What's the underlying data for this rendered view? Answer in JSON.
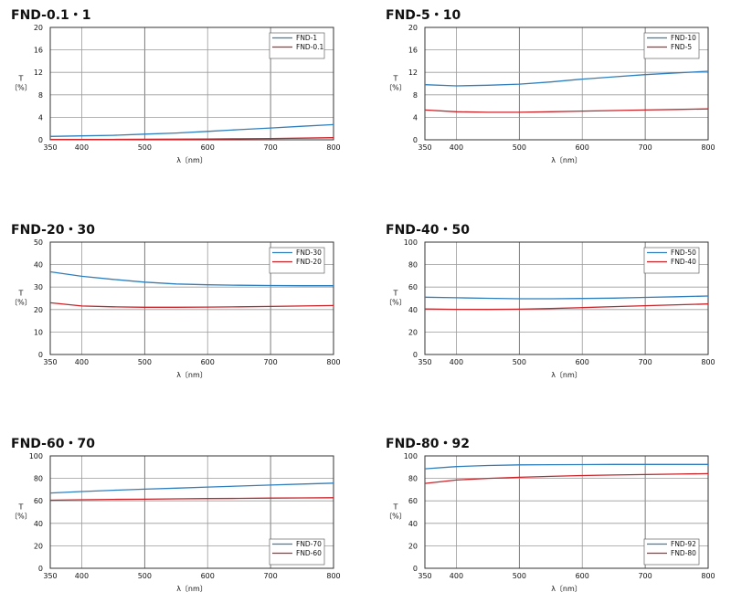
{
  "colors": {
    "blue": "#2f7fbd",
    "red": "#c8242a"
  },
  "chart_data": [
    {
      "type": "line",
      "title": "FND-0.1・1",
      "xlabel": "λ〔nm〕",
      "ylabel": "T〔%〕",
      "xlim": [
        350,
        800
      ],
      "ylim": [
        0,
        20
      ],
      "xticks": [
        350,
        400,
        500,
        600,
        700,
        800
      ],
      "yticks": [
        0,
        4,
        8,
        12,
        16,
        20
      ],
      "legend": "top-right",
      "series": [
        {
          "name": "FND-1",
          "color": "#2f7fbd",
          "x": [
            350,
            400,
            450,
            500,
            550,
            600,
            650,
            700,
            750,
            800
          ],
          "y": [
            0.6,
            0.7,
            0.8,
            1.0,
            1.2,
            1.5,
            1.8,
            2.1,
            2.4,
            2.7
          ]
        },
        {
          "name": "FND-0.1",
          "color": "#c8242a",
          "x": [
            350,
            400,
            450,
            500,
            550,
            600,
            650,
            700,
            750,
            800
          ],
          "y": [
            0.05,
            0.06,
            0.07,
            0.09,
            0.11,
            0.14,
            0.18,
            0.23,
            0.3,
            0.38
          ]
        }
      ]
    },
    {
      "type": "line",
      "title": "FND-5・10",
      "xlabel": "λ〔nm〕",
      "ylabel": "T〔%〕",
      "xlim": [
        350,
        800
      ],
      "ylim": [
        0,
        20
      ],
      "xticks": [
        350,
        400,
        500,
        600,
        700,
        800
      ],
      "yticks": [
        0,
        4,
        8,
        12,
        16,
        20
      ],
      "legend": "top-right",
      "series": [
        {
          "name": "FND-10",
          "color": "#2f7fbd",
          "x": [
            350,
            400,
            450,
            500,
            550,
            600,
            650,
            700,
            750,
            800
          ],
          "y": [
            9.8,
            9.6,
            9.7,
            9.9,
            10.3,
            10.8,
            11.2,
            11.6,
            11.9,
            12.2
          ]
        },
        {
          "name": "FND-5",
          "color": "#c8242a",
          "x": [
            350,
            400,
            450,
            500,
            550,
            600,
            650,
            700,
            750,
            800
          ],
          "y": [
            5.3,
            5.0,
            4.9,
            4.9,
            5.0,
            5.1,
            5.2,
            5.3,
            5.4,
            5.5
          ]
        }
      ]
    },
    {
      "type": "line",
      "title": "FND-20・30",
      "xlabel": "λ〔nm〕",
      "ylabel": "T〔%〕",
      "xlim": [
        350,
        800
      ],
      "ylim": [
        0,
        50
      ],
      "xticks": [
        350,
        400,
        500,
        600,
        700,
        800
      ],
      "yticks": [
        0,
        10,
        20,
        30,
        40,
        50
      ],
      "legend": "top-right",
      "series": [
        {
          "name": "FND-30",
          "color": "#2f7fbd",
          "x": [
            350,
            400,
            450,
            500,
            550,
            600,
            650,
            700,
            750,
            800
          ],
          "y": [
            36.8,
            34.8,
            33.4,
            32.2,
            31.4,
            31.0,
            30.8,
            30.7,
            30.6,
            30.6
          ]
        },
        {
          "name": "FND-20",
          "color": "#c8242a",
          "x": [
            350,
            400,
            450,
            500,
            550,
            600,
            650,
            700,
            750,
            800
          ],
          "y": [
            23.0,
            21.6,
            21.2,
            21.0,
            21.0,
            21.1,
            21.2,
            21.4,
            21.6,
            21.8
          ]
        }
      ]
    },
    {
      "type": "line",
      "title": "FND-40・50",
      "xlabel": "λ〔nm〕",
      "ylabel": "T〔%〕",
      "xlim": [
        350,
        800
      ],
      "ylim": [
        0,
        100
      ],
      "xticks": [
        350,
        400,
        500,
        600,
        700,
        800
      ],
      "yticks": [
        0,
        20,
        40,
        60,
        80,
        100
      ],
      "legend": "top-right",
      "series": [
        {
          "name": "FND-50",
          "color": "#2f7fbd",
          "x": [
            350,
            400,
            450,
            500,
            550,
            600,
            650,
            700,
            750,
            800
          ],
          "y": [
            51.0,
            50.5,
            50.0,
            49.6,
            49.6,
            49.8,
            50.2,
            50.8,
            51.4,
            52.0
          ]
        },
        {
          "name": "FND-40",
          "color": "#c8242a",
          "x": [
            350,
            400,
            450,
            500,
            550,
            600,
            650,
            700,
            750,
            800
          ],
          "y": [
            40.6,
            40.2,
            40.1,
            40.3,
            40.9,
            41.7,
            42.6,
            43.4,
            44.2,
            45.0
          ]
        }
      ]
    },
    {
      "type": "line",
      "title": "FND-60・70",
      "xlabel": "λ〔nm〕",
      "ylabel": "T〔%〕",
      "xlim": [
        350,
        800
      ],
      "ylim": [
        0,
        100
      ],
      "xticks": [
        350,
        400,
        500,
        600,
        700,
        800
      ],
      "yticks": [
        0,
        20,
        40,
        60,
        80,
        100
      ],
      "legend": "bottom-right",
      "series": [
        {
          "name": "FND-70",
          "color": "#2f7fbd",
          "x": [
            350,
            400,
            450,
            500,
            550,
            600,
            650,
            700,
            750,
            800
          ],
          "y": [
            67.0,
            68.3,
            69.4,
            70.4,
            71.3,
            72.3,
            73.2,
            74.1,
            75.0,
            75.8
          ]
        },
        {
          "name": "FND-60",
          "color": "#c8242a",
          "x": [
            350,
            400,
            450,
            500,
            550,
            600,
            650,
            700,
            750,
            800
          ],
          "y": [
            60.6,
            61.0,
            61.3,
            61.5,
            61.8,
            62.0,
            62.2,
            62.4,
            62.6,
            62.8
          ]
        }
      ]
    },
    {
      "type": "line",
      "title": "FND-80・92",
      "xlabel": "λ〔nm〕",
      "ylabel": "T〔%〕",
      "xlim": [
        350,
        800
      ],
      "ylim": [
        0,
        100
      ],
      "xticks": [
        350,
        400,
        500,
        600,
        700,
        800
      ],
      "yticks": [
        0,
        20,
        40,
        60,
        80,
        100
      ],
      "legend": "bottom-right",
      "series": [
        {
          "name": "FND-92",
          "color": "#2f7fbd",
          "x": [
            350,
            400,
            450,
            500,
            550,
            600,
            650,
            700,
            750,
            800
          ],
          "y": [
            88.5,
            90.5,
            91.5,
            92.0,
            92.2,
            92.3,
            92.4,
            92.4,
            92.4,
            92.4
          ]
        },
        {
          "name": "FND-80",
          "color": "#c8242a",
          "x": [
            350,
            400,
            450,
            500,
            550,
            600,
            650,
            700,
            750,
            800
          ],
          "y": [
            75.5,
            78.5,
            80.0,
            81.0,
            81.8,
            82.5,
            83.0,
            83.4,
            83.8,
            84.2
          ]
        }
      ]
    }
  ]
}
